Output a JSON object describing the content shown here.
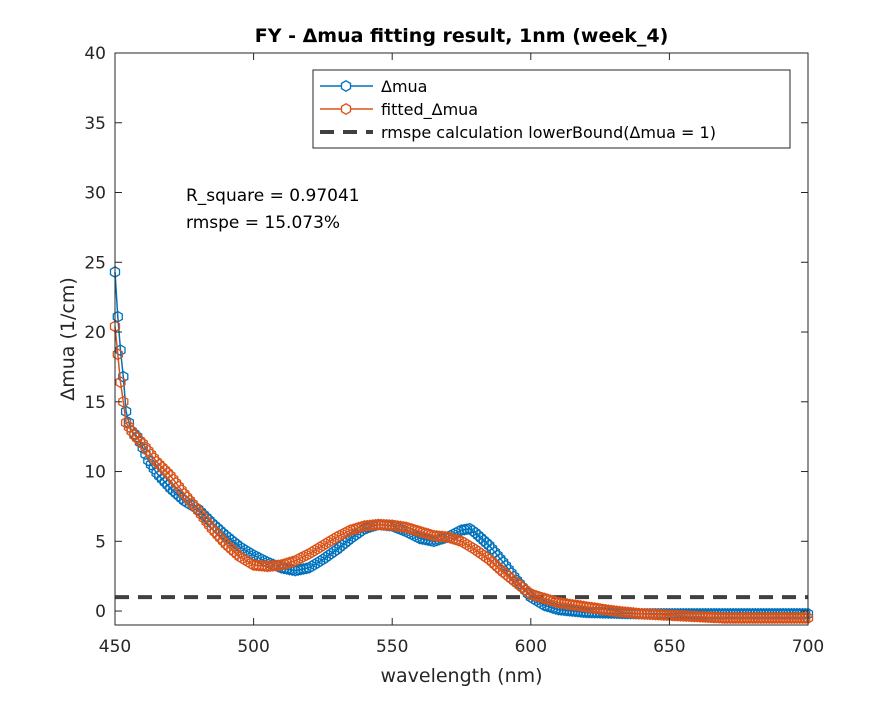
{
  "chart_data": {
    "type": "line",
    "title": "FY - Δmua fitting result, 1nm (week_4)",
    "xlabel": "wavelength (nm)",
    "ylabel": "Δmua (1/cm)",
    "xlim": [
      450,
      700
    ],
    "ylim": [
      -1,
      40
    ],
    "xticks": [
      "450",
      "500",
      "550",
      "600",
      "650",
      "700"
    ],
    "yticks": [
      "0",
      "5",
      "10",
      "15",
      "20",
      "25",
      "30",
      "35",
      "40"
    ],
    "grid": false,
    "legend_position": "top-right",
    "annotations": [
      "R_square = 0.97041",
      "rmspe = 15.073%"
    ],
    "series": [
      {
        "name": "Δmua",
        "color": "#0072BD",
        "marker": "hexagon-open",
        "x": [
          450,
          451,
          452,
          453,
          454,
          455,
          456,
          458,
          460,
          462,
          465,
          470,
          475,
          480,
          485,
          490,
          495,
          500,
          505,
          510,
          515,
          520,
          525,
          530,
          535,
          540,
          545,
          550,
          555,
          560,
          565,
          570,
          575,
          578,
          580,
          585,
          590,
          595,
          600,
          605,
          610,
          620,
          630,
          640,
          650,
          660,
          670,
          680,
          690,
          700
        ],
        "y": [
          24.3,
          21.1,
          18.7,
          16.8,
          14.3,
          13.5,
          12.9,
          12.5,
          11.7,
          10.8,
          9.9,
          8.8,
          7.9,
          7.3,
          6.3,
          5.4,
          4.6,
          4.0,
          3.5,
          3.1,
          2.9,
          3.1,
          3.7,
          4.4,
          5.2,
          5.9,
          6.2,
          6.1,
          5.7,
          5.2,
          5.0,
          5.3,
          5.8,
          5.9,
          5.6,
          4.7,
          3.5,
          2.2,
          1.0,
          0.4,
          0.1,
          -0.1,
          -0.15,
          -0.2,
          -0.2,
          -0.2,
          -0.2,
          -0.2,
          -0.2,
          -0.2
        ]
      },
      {
        "name": "fitted_Δmua",
        "color": "#D95319",
        "marker": "hexagon-open",
        "x": [
          450,
          451,
          452,
          453,
          454,
          455,
          457,
          460,
          465,
          470,
          475,
          480,
          485,
          490,
          495,
          500,
          505,
          510,
          515,
          520,
          525,
          530,
          535,
          540,
          545,
          550,
          555,
          560,
          565,
          570,
          575,
          580,
          585,
          590,
          595,
          600,
          605,
          610,
          620,
          630,
          640,
          650,
          660,
          670,
          680,
          690,
          700
        ],
        "y": [
          20.4,
          18.4,
          16.4,
          15.0,
          13.5,
          13.2,
          12.6,
          12.0,
          10.7,
          9.7,
          8.4,
          7.2,
          5.9,
          4.8,
          3.9,
          3.3,
          3.2,
          3.3,
          3.6,
          4.1,
          4.7,
          5.3,
          5.8,
          6.1,
          6.2,
          6.15,
          6.0,
          5.7,
          5.4,
          5.3,
          5.0,
          4.4,
          3.7,
          2.8,
          2.0,
          1.2,
          0.9,
          0.6,
          0.3,
          0.0,
          -0.2,
          -0.3,
          -0.4,
          -0.5,
          -0.5,
          -0.5,
          -0.5
        ]
      },
      {
        "name": "rmspe calculation lowerBound(Δmua = 1)",
        "color": "#404040",
        "line_style": "dashed",
        "x": [
          450,
          700
        ],
        "y": [
          1,
          1
        ]
      }
    ]
  }
}
